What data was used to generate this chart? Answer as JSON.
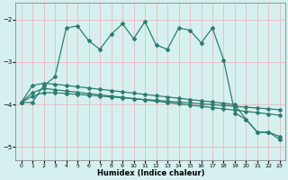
{
  "xlabel": "Humidex (Indice chaleur)",
  "xlim": [
    -0.5,
    23.5
  ],
  "ylim": [
    -5.3,
    -1.6
  ],
  "yticks": [
    -5,
    -4,
    -3,
    -2
  ],
  "xticks": [
    0,
    1,
    2,
    3,
    4,
    5,
    6,
    7,
    8,
    9,
    10,
    11,
    12,
    13,
    14,
    15,
    16,
    17,
    18,
    19,
    20,
    21,
    22,
    23
  ],
  "bg_color": "#d6f0f0",
  "grid_color": "#c0e0e0",
  "line_color": "#2e7d6e",
  "line1_x": [
    0,
    1,
    2,
    3,
    4,
    5,
    6,
    7,
    8,
    9,
    10,
    11,
    12,
    13,
    14,
    15,
    16,
    17,
    18,
    19,
    20,
    21,
    22,
    23
  ],
  "line1_y": [
    -3.95,
    -3.95,
    -3.55,
    -3.35,
    -2.2,
    -2.15,
    -2.5,
    -2.7,
    -2.35,
    -2.1,
    -2.45,
    -2.05,
    -2.6,
    -2.7,
    -2.2,
    -2.25,
    -2.55,
    -2.2,
    -2.95,
    -4.2,
    -4.35,
    -4.65,
    -4.65,
    -4.75
  ],
  "line2_x": [
    0,
    1,
    2,
    3,
    4,
    5,
    6,
    7,
    8,
    9,
    10,
    11,
    12,
    13,
    14,
    15,
    16,
    17,
    18,
    19,
    20,
    21,
    22,
    23
  ],
  "line2_y": [
    -3.95,
    -3.55,
    -3.5,
    -3.52,
    -3.55,
    -3.58,
    -3.61,
    -3.64,
    -3.67,
    -3.7,
    -3.73,
    -3.76,
    -3.79,
    -3.82,
    -3.85,
    -3.88,
    -3.91,
    -3.94,
    -3.97,
    -4.0,
    -4.35,
    -4.65,
    -4.65,
    -4.82
  ],
  "line3_x": [
    0,
    1,
    2,
    3,
    4,
    5,
    6,
    7,
    8,
    9,
    10,
    11,
    12,
    13,
    14,
    15,
    16,
    17,
    18,
    19,
    20,
    21,
    22,
    23
  ],
  "line3_y": [
    -3.95,
    -3.72,
    -3.62,
    -3.65,
    -3.68,
    -3.71,
    -3.74,
    -3.77,
    -3.8,
    -3.83,
    -3.86,
    -3.89,
    -3.92,
    -3.95,
    -3.98,
    -4.01,
    -4.04,
    -4.07,
    -4.1,
    -4.13,
    -4.16,
    -4.19,
    -4.22,
    -4.25
  ],
  "line4_x": [
    0,
    1,
    2,
    3,
    4,
    5,
    6,
    7,
    8,
    9,
    10,
    11,
    12,
    13,
    14,
    15,
    16,
    17,
    18,
    19,
    20,
    21,
    22,
    23
  ],
  "line4_y": [
    -3.95,
    -3.8,
    -3.72,
    -3.72,
    -3.74,
    -3.76,
    -3.78,
    -3.8,
    -3.82,
    -3.84,
    -3.86,
    -3.88,
    -3.9,
    -3.92,
    -3.94,
    -3.96,
    -3.98,
    -4.0,
    -4.02,
    -4.04,
    -4.06,
    -4.08,
    -4.1,
    -4.12
  ]
}
